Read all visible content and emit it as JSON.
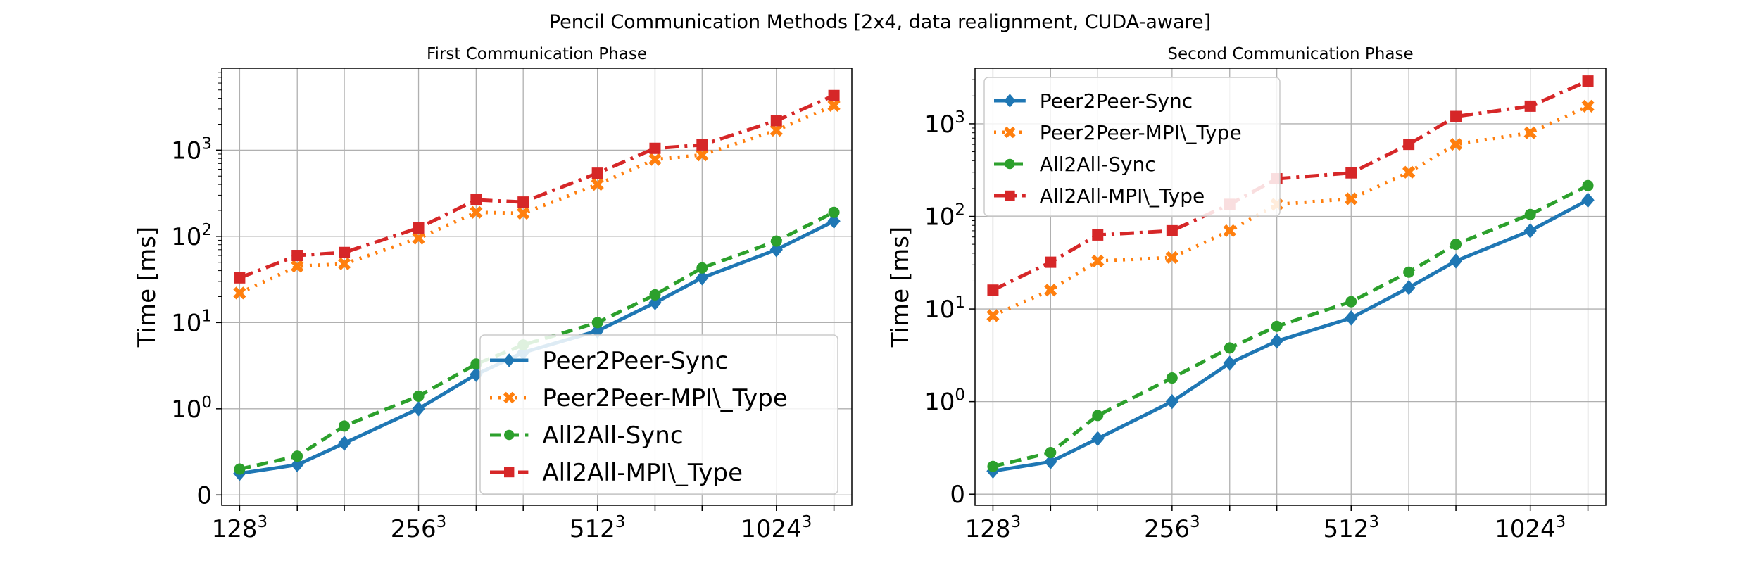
{
  "figure": {
    "title": "Pencil Communication Methods [2x4, data realignment, CUDA-aware]"
  },
  "chart_data": [
    {
      "type": "line",
      "title": "First Communication Phase",
      "xlabel": "",
      "ylabel": "Time [ms]",
      "yscale": "symlog",
      "grid": true,
      "legend_position": "lower-right",
      "xticks": [
        {
          "at": 128,
          "base": "128",
          "exp": "3"
        },
        {
          "at": 256,
          "base": "256",
          "exp": "3"
        },
        {
          "at": 512,
          "base": "512",
          "exp": "3"
        },
        {
          "at": 1024,
          "base": "1024",
          "exp": "3"
        }
      ],
      "yticks": [
        {
          "value": 0,
          "base": "0",
          "exp": ""
        },
        {
          "value": 1,
          "base": "10",
          "exp": "0"
        },
        {
          "value": 10,
          "base": "10",
          "exp": "1"
        },
        {
          "value": 100,
          "base": "10",
          "exp": "2"
        },
        {
          "value": 1000,
          "base": "10",
          "exp": "3"
        }
      ],
      "x": [
        128,
        160,
        192,
        256,
        320,
        384,
        512,
        640,
        768,
        1024,
        1280
      ],
      "series": [
        {
          "name": "Peer2Peer-Sync",
          "color": "#1f77b4",
          "style": "solid",
          "marker": "diamond",
          "values": [
            0.25,
            0.35,
            0.6,
            1.0,
            2.5,
            4.5,
            8,
            17,
            33,
            70,
            150
          ]
        },
        {
          "name": "Peer2Peer-MPI\\_Type",
          "color": "#ff7f0e",
          "style": "dotted",
          "marker": "x",
          "values": [
            22,
            45,
            48,
            95,
            190,
            185,
            400,
            780,
            880,
            1700,
            3300
          ]
        },
        {
          "name": "All2All-Sync",
          "color": "#2ca02c",
          "style": "dashed",
          "marker": "circle",
          "values": [
            0.3,
            0.45,
            0.8,
            1.4,
            3.3,
            5.5,
            10,
            21,
            43,
            88,
            190
          ]
        },
        {
          "name": "All2All-MPI\\_Type",
          "color": "#d62728",
          "style": "dashdot",
          "marker": "square",
          "values": [
            33,
            60,
            65,
            125,
            265,
            250,
            540,
            1050,
            1150,
            2200,
            4300
          ]
        }
      ]
    },
    {
      "type": "line",
      "title": "Second Communication Phase",
      "xlabel": "",
      "ylabel": "Time [ms]",
      "yscale": "symlog",
      "grid": true,
      "legend_position": "top-left",
      "xticks": [
        {
          "at": 128,
          "base": "128",
          "exp": "3"
        },
        {
          "at": 256,
          "base": "256",
          "exp": "3"
        },
        {
          "at": 512,
          "base": "512",
          "exp": "3"
        },
        {
          "at": 1024,
          "base": "1024",
          "exp": "3"
        }
      ],
      "yticks": [
        {
          "value": 0,
          "base": "0",
          "exp": ""
        },
        {
          "value": 1,
          "base": "10",
          "exp": "0"
        },
        {
          "value": 10,
          "base": "10",
          "exp": "1"
        },
        {
          "value": 100,
          "base": "10",
          "exp": "2"
        },
        {
          "value": 1000,
          "base": "10",
          "exp": "3"
        }
      ],
      "x": [
        128,
        160,
        192,
        256,
        320,
        384,
        512,
        640,
        768,
        1024,
        1280
      ],
      "series": [
        {
          "name": "Peer2Peer-Sync",
          "color": "#1f77b4",
          "style": "solid",
          "marker": "diamond",
          "values": [
            0.25,
            0.35,
            0.6,
            1.0,
            2.6,
            4.5,
            8,
            17,
            33,
            70,
            150
          ]
        },
        {
          "name": "Peer2Peer-MPI\\_Type",
          "color": "#ff7f0e",
          "style": "dotted",
          "marker": "x",
          "values": [
            8.5,
            16,
            33,
            36,
            70,
            135,
            155,
            300,
            600,
            800,
            1550
          ]
        },
        {
          "name": "All2All-Sync",
          "color": "#2ca02c",
          "style": "dashed",
          "marker": "circle",
          "values": [
            0.3,
            0.45,
            0.85,
            1.8,
            3.8,
            6.5,
            12,
            25,
            50,
            105,
            215
          ]
        },
        {
          "name": "All2All-MPI\\_Type",
          "color": "#d62728",
          "style": "dashdot",
          "marker": "square",
          "values": [
            16,
            32,
            63,
            70,
            135,
            255,
            295,
            600,
            1200,
            1550,
            2900
          ]
        }
      ]
    }
  ]
}
